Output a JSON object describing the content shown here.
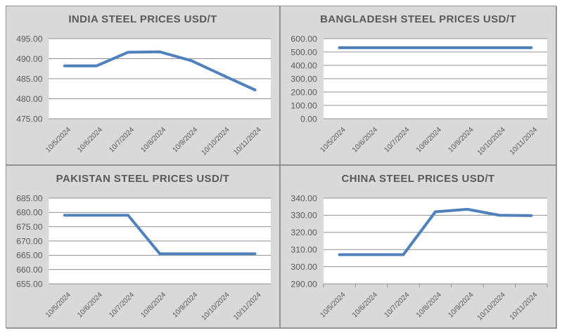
{
  "colors": {
    "card_background": "#d9d9d9",
    "card_border": "#8f8f8f",
    "plot_background": "#ffffff",
    "gridline": "#919191",
    "axis_text": "#595959",
    "series_line": "#4F81BD"
  },
  "chart_data": [
    {
      "type": "line",
      "title": "INDIA STEEL PRICES USD/T",
      "x": [
        "10/5/2024",
        "10/6/2024",
        "10/7/2024",
        "10/8/2024",
        "10/9/2024",
        "10/10/2024",
        "10/11/2024"
      ],
      "values": [
        488.2,
        488.2,
        491.6,
        491.7,
        489.5,
        485.8,
        482.2
      ],
      "ylim": [
        475,
        495
      ],
      "ystep": 5,
      "grid": true,
      "legend": "none",
      "x_tick_marks": false,
      "line_color": "#4F81BD"
    },
    {
      "type": "line",
      "title": "BANGLADESH STEEL PRICES USD/T",
      "x": [
        "10/5/2024",
        "10/6/2024",
        "10/7/2024",
        "10/8/2024",
        "10/9/2024",
        "10/10/2024",
        "10/11/2024"
      ],
      "values": [
        532,
        532,
        532,
        532,
        532,
        532,
        532
      ],
      "ylim": [
        0,
        600
      ],
      "ystep": 100,
      "grid": true,
      "legend": "none",
      "x_tick_marks": false,
      "line_color": "#4F81BD"
    },
    {
      "type": "line",
      "title": "PAKISTAN STEEL PRICES USD/T",
      "x": [
        "10/5/2024",
        "10/6/2024",
        "10/7/2024",
        "10/8/2024",
        "10/9/2024",
        "10/10/2024",
        "10/11/2024"
      ],
      "values": [
        679,
        679,
        679,
        665.5,
        665.5,
        665.5,
        665.5
      ],
      "ylim": [
        655,
        685
      ],
      "ystep": 5,
      "grid": true,
      "legend": "none",
      "x_tick_marks": false,
      "line_color": "#4F81BD"
    },
    {
      "type": "line",
      "title": "CHINA STEEL PRICES USD/T",
      "x": [
        "10/5/2024",
        "10/6/2024",
        "10/7/2024",
        "10/8/2024",
        "10/9/2024",
        "10/10/2024",
        "10/11/2024"
      ],
      "values": [
        307,
        307,
        307,
        332,
        333.5,
        330,
        329.8
      ],
      "ylim": [
        290,
        340
      ],
      "ystep": 10,
      "grid": true,
      "legend": "none",
      "x_tick_marks": true,
      "line_color": "#4F81BD"
    }
  ]
}
